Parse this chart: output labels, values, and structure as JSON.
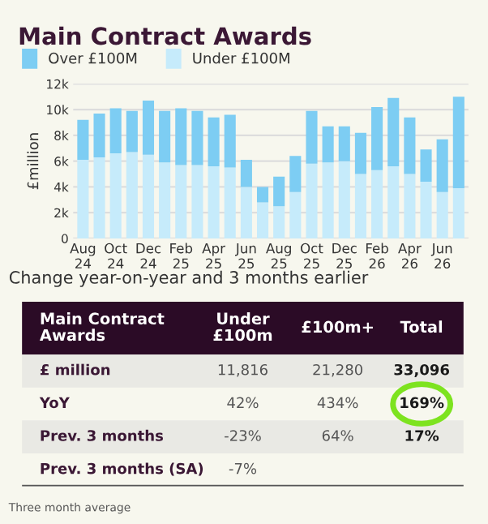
{
  "chart_data": [
    {
      "type": "bar",
      "title": "Main Contract Awards",
      "ylabel": "£million",
      "stacked": true,
      "grid": "y",
      "legend": "top left",
      "categories": [
        "Aug\n24",
        null,
        "Oct\n24",
        null,
        "Dec\n24",
        null,
        "Feb\n25",
        null,
        "Apr\n25",
        null,
        "Jun\n25",
        null,
        "Aug\n25",
        null,
        "Oct\n25",
        null,
        "Dec\n25",
        null,
        "Feb\n26",
        null,
        "Apr\n26",
        null,
        "Jun\n26",
        null
      ],
      "ylim": [
        0,
        12000
      ],
      "yticks": [
        0,
        {
          "value": 2000,
          "label": "2k"
        },
        {
          "value": 4000,
          "label": "4k"
        },
        {
          "value": 6000,
          "label": "6k"
        },
        {
          "value": 8000,
          "label": "8k"
        },
        {
          "value": 10000,
          "label": "10k"
        },
        {
          "value": 12000,
          "label": "12k"
        }
      ],
      "series": [
        {
          "name": "Under £100M",
          "color": "#c6ebfb",
          "values": [
            6100,
            6300,
            6600,
            6700,
            6500,
            5900,
            5700,
            5700,
            5600,
            5500,
            4000,
            2800,
            2500,
            3600,
            5800,
            5900,
            6000,
            5000,
            5300,
            5600,
            5000,
            4400,
            3600,
            3900
          ]
        },
        {
          "name": "Over £100M",
          "color": "#7dcdf3",
          "values": [
            3100,
            3400,
            3500,
            3200,
            4200,
            4000,
            4400,
            4200,
            3800,
            4100,
            2100,
            1200,
            2300,
            2800,
            4100,
            2800,
            2700,
            3200,
            4900,
            5300,
            4400,
            2500,
            4100,
            7100
          ]
        }
      ]
    },
    {
      "type": "other",
      "title": "Change year-on-year and 3 months earlier",
      "categories": [
        "Main Contract\nAwards",
        "Under\n£100m",
        "£100m+",
        "Total"
      ],
      "y_categories": [
        "£ million",
        "YoY",
        "Prev. 3 months",
        "Prev. 3 months (SA)"
      ],
      "cell_labels": [
        [
          "11,816",
          "21,280",
          "33,096"
        ],
        [
          "42%",
          "434%",
          "169%"
        ],
        [
          "-23%",
          "64%",
          "17%"
        ],
        [
          "-7%",
          null,
          null
        ]
      ],
      "annotations": [
        "Three month average"
      ]
    }
  ]
}
